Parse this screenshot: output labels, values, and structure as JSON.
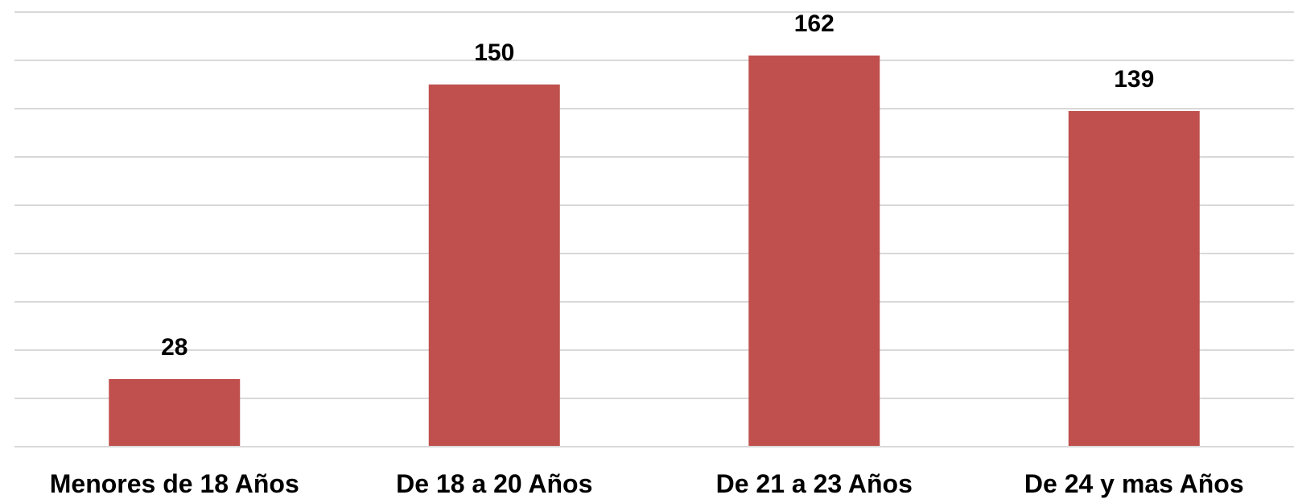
{
  "chart_data": {
    "type": "bar",
    "title": "",
    "xlabel": "",
    "ylabel": "",
    "categories": [
      "Menores de 18 Años",
      "De 18 a 20 Años",
      "De 21 a 23 Años",
      "De 24 y mas Años"
    ],
    "values": [
      28,
      150,
      162,
      139
    ],
    "ylim": [
      0,
      180
    ],
    "grid_step": 20,
    "grid": true,
    "legend": "none",
    "data_labels": true,
    "bar_color": "#c0504d"
  }
}
